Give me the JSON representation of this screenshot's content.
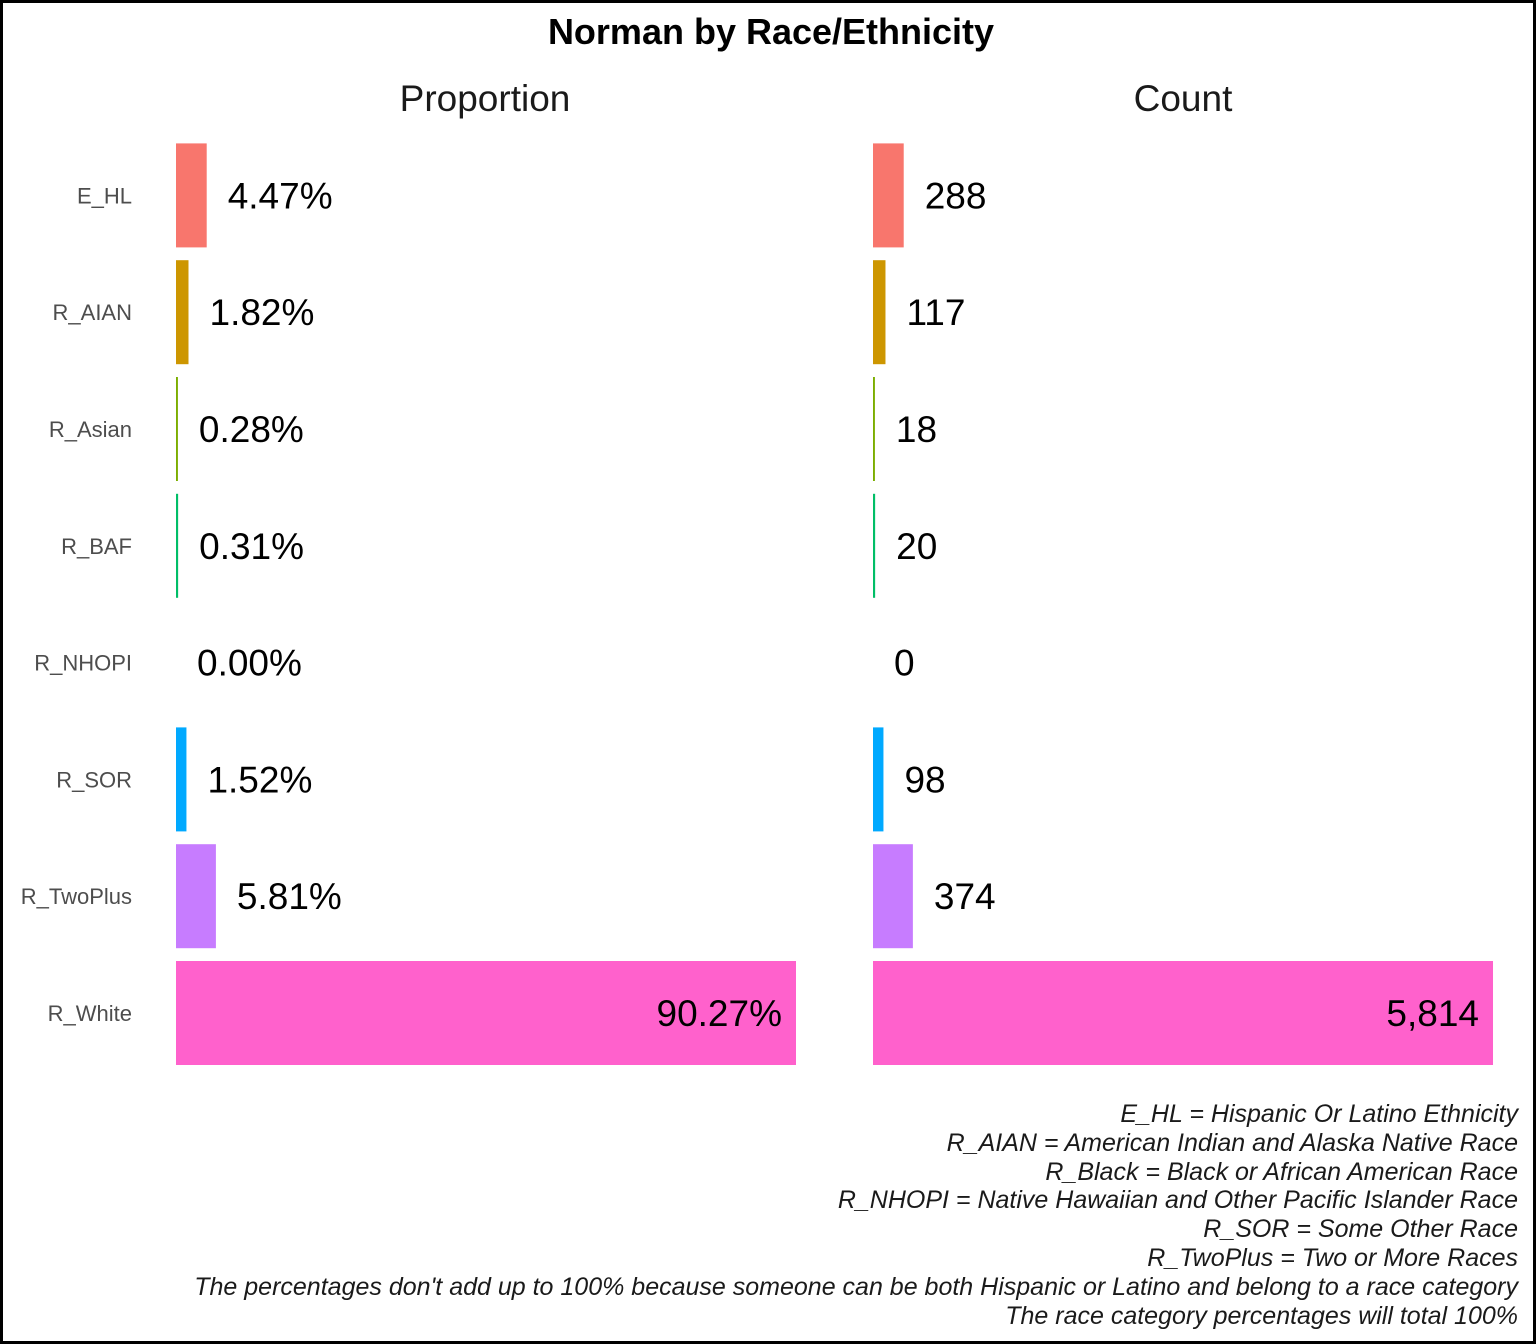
{
  "chart_data": {
    "type": "bar",
    "orientation": "horizontal",
    "title": "Norman by Race/Ethnicity",
    "categories": [
      "E_HL",
      "R_AIAN",
      "R_Asian",
      "R_BAF",
      "R_NHOPI",
      "R_SOR",
      "R_TwoPlus",
      "R_White"
    ],
    "colors": [
      "#F8766D",
      "#CD9600",
      "#7CAE00",
      "#00BE67",
      "#00BFC4",
      "#00A9FF",
      "#C77CFF",
      "#FF61CC"
    ],
    "panels": [
      {
        "name": "Proportion",
        "values": [
          4.47,
          1.82,
          0.28,
          0.31,
          0.0,
          1.52,
          5.81,
          90.27
        ],
        "labels": [
          "4.47%",
          "1.82%",
          "0.28%",
          "0.31%",
          "0.00%",
          "1.52%",
          "5.81%",
          "90.27%"
        ]
      },
      {
        "name": "Count",
        "values": [
          288,
          117,
          18,
          20,
          0,
          98,
          374,
          5814
        ],
        "labels": [
          "288",
          "117",
          "18",
          "20",
          "0",
          "98",
          "374",
          "5,814"
        ]
      }
    ],
    "grid": false,
    "legend": "none"
  },
  "footnotes": [
    "E_HL = Hispanic Or Latino Ethnicity",
    "R_AIAN = American Indian and Alaska Native Race",
    "R_Black = Black or African American Race",
    "R_NHOPI = Native Hawaiian and Other Pacific Islander Race",
    "R_SOR = Some Other Race",
    "R_TwoPlus = Two or More Races",
    "The percentages don't add up to 100% because someone can be both Hispanic or Latino and belong to a race category",
    "The race category percentages will total 100%"
  ]
}
